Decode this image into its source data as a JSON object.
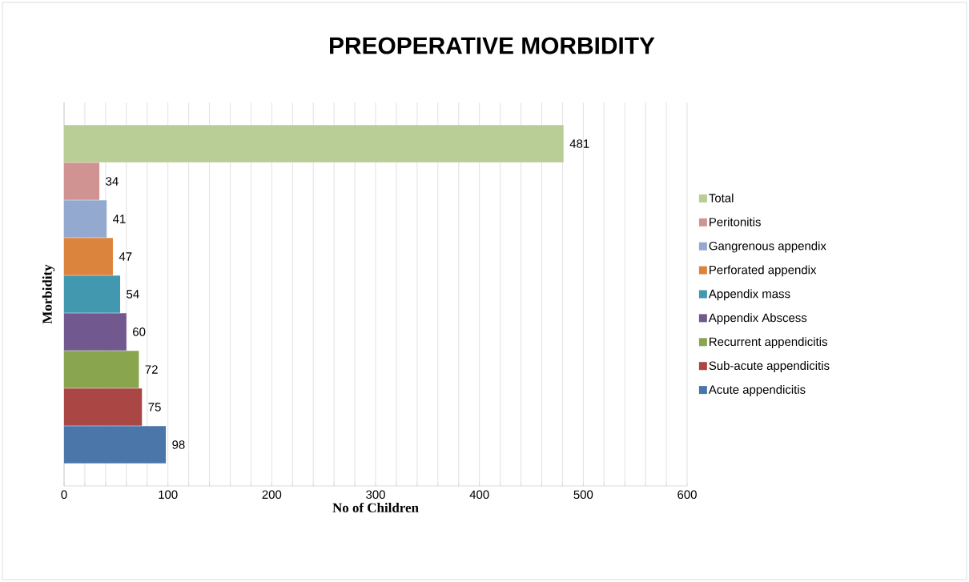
{
  "chart_data": {
    "type": "bar",
    "orientation": "horizontal",
    "title": "PREOPERATIVE MORBIDITY",
    "xlabel": "No of Children",
    "ylabel": "Morbidity",
    "categories": [
      null
    ],
    "series": [
      {
        "name": "Acute appendicitis",
        "color": "#4a76aa",
        "values": [
          98
        ]
      },
      {
        "name": "Sub-acute appendicitis",
        "color": "#aa4644",
        "values": [
          75
        ]
      },
      {
        "name": "Recurrent appendicitis",
        "color": "#89a54e",
        "values": [
          72
        ]
      },
      {
        "name": "Appendix Abscess",
        "color": "#71588f",
        "values": [
          60
        ]
      },
      {
        "name": "Appendix mass",
        "color": "#4198af",
        "values": [
          54
        ]
      },
      {
        "name": "Perforated appendix",
        "color": "#db843d",
        "values": [
          47
        ]
      },
      {
        "name": "Gangrenous appendix",
        "color": "#93a9cf",
        "values": [
          41
        ]
      },
      {
        "name": "Peritonitis",
        "color": "#d19392",
        "values": [
          34
        ]
      },
      {
        "name": "Total",
        "color": "#b9cd96",
        "values": [
          481
        ]
      }
    ],
    "xlim": [
      0,
      600
    ],
    "xticks": [
      0,
      {
        "value": 20,
        "label": null
      },
      {
        "value": 40,
        "label": null
      },
      {
        "value": 60,
        "label": null
      },
      {
        "value": 80,
        "label": null
      },
      100,
      {
        "value": 120,
        "label": null
      },
      {
        "value": 140,
        "label": null
      },
      {
        "value": 160,
        "label": null
      },
      {
        "value": 180,
        "label": null
      },
      200,
      {
        "value": 220,
        "label": null
      },
      {
        "value": 240,
        "label": null
      },
      {
        "value": 260,
        "label": null
      },
      {
        "value": 280,
        "label": null
      },
      300,
      {
        "value": 320,
        "label": null
      },
      {
        "value": 340,
        "label": null
      },
      {
        "value": 360,
        "label": null
      },
      {
        "value": 380,
        "label": null
      },
      400,
      {
        "value": 420,
        "label": null
      },
      {
        "value": 440,
        "label": null
      },
      {
        "value": 460,
        "label": null
      },
      {
        "value": 480,
        "label": null
      },
      500,
      {
        "value": 520,
        "label": null
      },
      {
        "value": 540,
        "label": null
      },
      {
        "value": 560,
        "label": null
      },
      {
        "value": 580,
        "label": null
      },
      600
    ],
    "grid": "x",
    "legend": "right",
    "data_labels": true,
    "tick_labels": "x"
  }
}
